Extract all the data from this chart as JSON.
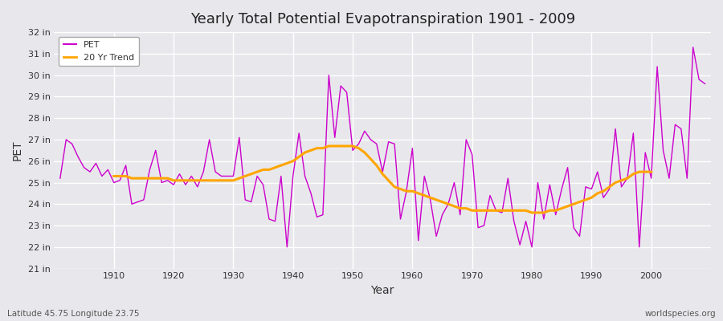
{
  "title": "Yearly Total Potential Evapotranspiration 1901 - 2009",
  "xlabel": "Year",
  "ylabel": "PET",
  "subtitle_left": "Latitude 45.75 Longitude 23.75",
  "subtitle_right": "worldspecies.org",
  "ylim": [
    21,
    32
  ],
  "yticks": [
    21,
    22,
    23,
    24,
    25,
    26,
    27,
    28,
    29,
    30,
    31,
    32
  ],
  "ytick_labels": [
    "21 in",
    "22 in",
    "23 in",
    "24 in",
    "25 in",
    "26 in",
    "27 in",
    "28 in",
    "29 in",
    "30 in",
    "31 in",
    "32 in"
  ],
  "xticks": [
    1910,
    1920,
    1930,
    1940,
    1950,
    1960,
    1970,
    1980,
    1990,
    2000
  ],
  "pet_color": "#CC00CC",
  "trend_color": "#FFA500",
  "fig_background": "#E8E8EC",
  "plot_background": "#E8E8EC",
  "grid_color": "#FFFFFF",
  "years": [
    1901,
    1902,
    1903,
    1904,
    1905,
    1906,
    1907,
    1908,
    1909,
    1910,
    1911,
    1912,
    1913,
    1914,
    1915,
    1916,
    1917,
    1918,
    1919,
    1920,
    1921,
    1922,
    1923,
    1924,
    1925,
    1926,
    1927,
    1928,
    1929,
    1930,
    1931,
    1932,
    1933,
    1934,
    1935,
    1936,
    1937,
    1938,
    1939,
    1940,
    1941,
    1942,
    1943,
    1944,
    1945,
    1946,
    1947,
    1948,
    1949,
    1950,
    1951,
    1952,
    1953,
    1954,
    1955,
    1956,
    1957,
    1958,
    1959,
    1960,
    1961,
    1962,
    1963,
    1964,
    1965,
    1966,
    1967,
    1968,
    1969,
    1970,
    1971,
    1972,
    1973,
    1974,
    1975,
    1976,
    1977,
    1978,
    1979,
    1980,
    1981,
    1982,
    1983,
    1984,
    1985,
    1986,
    1987,
    1988,
    1989,
    1990,
    1991,
    1992,
    1993,
    1994,
    1995,
    1996,
    1997,
    1998,
    1999,
    2000,
    2001,
    2002,
    2003,
    2004,
    2005,
    2006,
    2007,
    2008,
    2009
  ],
  "pet_values": [
    25.2,
    27.0,
    26.8,
    26.2,
    25.7,
    25.5,
    25.9,
    25.3,
    25.6,
    25.0,
    25.1,
    25.8,
    24.0,
    24.1,
    24.2,
    25.6,
    26.5,
    25.0,
    25.1,
    24.9,
    25.4,
    24.9,
    25.3,
    24.8,
    25.5,
    27.0,
    25.5,
    25.3,
    25.3,
    25.3,
    27.1,
    24.2,
    24.1,
    25.3,
    24.9,
    23.3,
    23.2,
    25.3,
    22.0,
    25.3,
    27.3,
    25.3,
    24.5,
    23.4,
    23.5,
    30.0,
    27.1,
    29.5,
    29.2,
    26.5,
    26.8,
    27.4,
    27.0,
    26.8,
    25.5,
    26.9,
    26.8,
    23.3,
    24.6,
    26.6,
    22.3,
    25.3,
    24.2,
    22.5,
    23.5,
    24.0,
    25.0,
    23.5,
    27.0,
    26.3,
    22.9,
    23.0,
    24.4,
    23.7,
    23.6,
    25.2,
    23.2,
    22.1,
    23.2,
    22.0,
    25.0,
    23.3,
    24.9,
    23.5,
    24.7,
    25.7,
    22.9,
    22.5,
    24.8,
    24.7,
    25.5,
    24.3,
    24.7,
    27.5,
    24.8,
    25.2,
    27.3,
    22.0,
    26.4,
    25.2,
    30.4,
    26.5,
    25.2,
    27.7,
    27.5,
    25.2,
    31.3,
    29.8,
    29.6
  ],
  "trend_values": [
    null,
    null,
    null,
    null,
    null,
    null,
    null,
    null,
    null,
    25.3,
    25.3,
    25.3,
    25.2,
    25.2,
    25.2,
    25.2,
    25.2,
    25.2,
    25.2,
    25.1,
    25.1,
    25.1,
    25.1,
    25.1,
    25.1,
    25.1,
    25.1,
    25.1,
    25.1,
    25.1,
    25.2,
    25.3,
    25.4,
    25.5,
    25.6,
    25.6,
    25.7,
    25.8,
    25.9,
    26.0,
    26.2,
    26.4,
    26.5,
    26.6,
    26.6,
    26.7,
    26.7,
    26.7,
    26.7,
    26.7,
    26.6,
    26.4,
    26.1,
    25.8,
    25.4,
    25.1,
    24.8,
    24.7,
    24.6,
    24.6,
    24.5,
    24.4,
    24.3,
    24.2,
    24.1,
    24.0,
    23.9,
    23.8,
    23.8,
    23.7,
    23.7,
    23.7,
    23.7,
    23.7,
    23.7,
    23.7,
    23.7,
    23.7,
    23.7,
    23.6,
    23.6,
    23.6,
    23.7,
    23.7,
    23.8,
    23.9,
    24.0,
    24.1,
    24.2,
    24.3,
    24.5,
    24.6,
    24.8,
    25.0,
    25.1,
    25.2,
    25.4,
    25.5,
    25.5,
    25.5,
    null,
    null,
    null,
    null,
    null,
    null,
    null,
    null,
    null
  ]
}
